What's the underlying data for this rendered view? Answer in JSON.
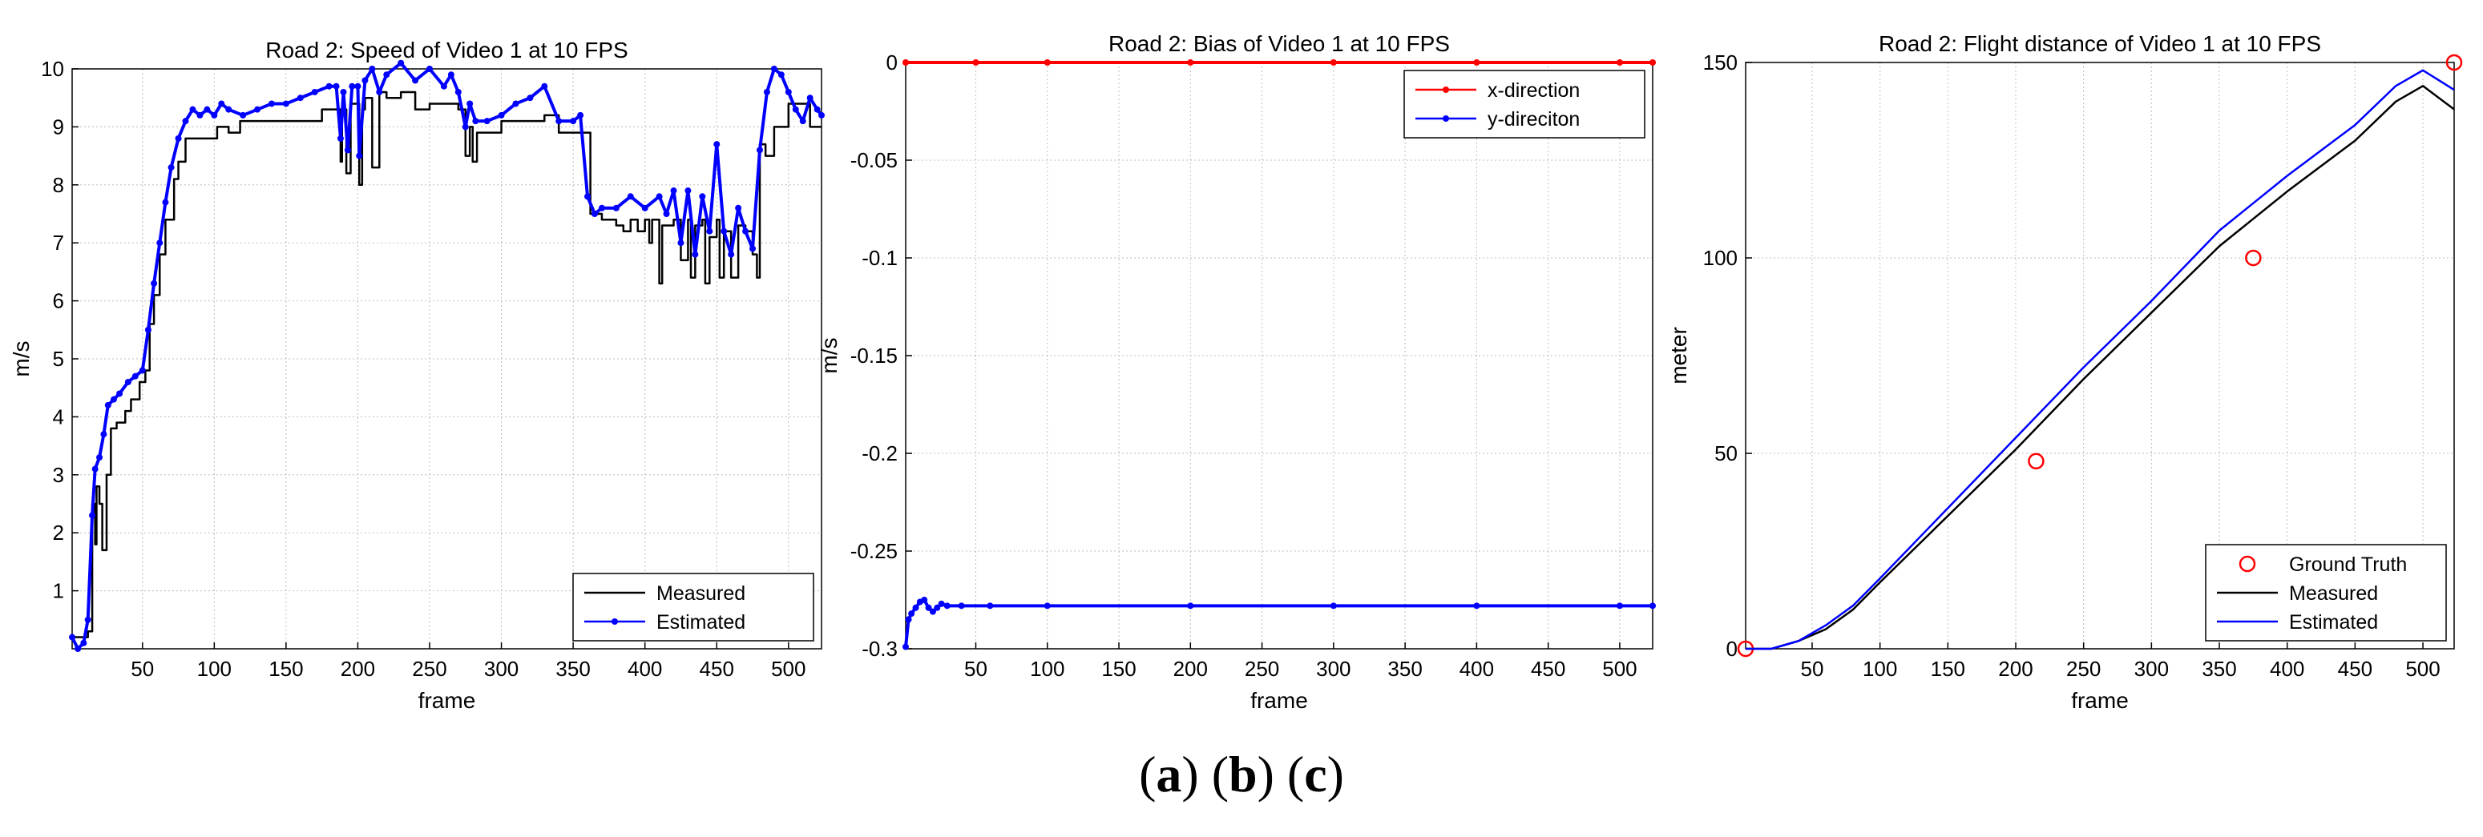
{
  "caption": {
    "a_label": "a",
    "b_label": "b",
    "c_label": "c"
  },
  "chart_data": [
    {
      "type": "line",
      "title": "Road 2: Speed of Video 1 at 10 FPS",
      "xlabel": "frame",
      "ylabel": "m/s",
      "xlim": [
        1,
        523
      ],
      "ylim": [
        0,
        10
      ],
      "xticks": [
        50,
        100,
        150,
        200,
        250,
        300,
        350,
        400,
        450,
        500
      ],
      "yticks": [
        1,
        2,
        3,
        4,
        5,
        6,
        7,
        8,
        9,
        10
      ],
      "legend": "bottom-right",
      "series": [
        {
          "name": "Measured",
          "color": "#000000",
          "marker": "none",
          "x": [
            1,
            5,
            9,
            12,
            15,
            17,
            18,
            20,
            22,
            25,
            28,
            32,
            38,
            42,
            48,
            52,
            55,
            58,
            62,
            66,
            72,
            75,
            80,
            85,
            90,
            100,
            102,
            110,
            115,
            118,
            130,
            140,
            160,
            175,
            185,
            188,
            189,
            192,
            195,
            200,
            201,
            203,
            205,
            210,
            215,
            220,
            230,
            240,
            250,
            260,
            270,
            275,
            278,
            280,
            283,
            290,
            300,
            310,
            320,
            330,
            340,
            350,
            358,
            362,
            370,
            380,
            385,
            390,
            395,
            400,
            403,
            405,
            410,
            412,
            415,
            420,
            425,
            430,
            432,
            435,
            440,
            442,
            445,
            450,
            452,
            455,
            460,
            465,
            470,
            475,
            478,
            480,
            484,
            490,
            500,
            510,
            515,
            520,
            523
          ],
          "y": [
            0.2,
            0.2,
            0.2,
            0.3,
            2.5,
            1.8,
            2.8,
            2.5,
            1.7,
            3.0,
            3.8,
            3.9,
            4.1,
            4.3,
            4.6,
            4.8,
            5.6,
            6.1,
            6.8,
            7.4,
            8.1,
            8.4,
            8.8,
            8.8,
            8.8,
            8.8,
            9.0,
            8.9,
            8.9,
            9.1,
            9.1,
            9.1,
            9.1,
            9.3,
            9.3,
            8.4,
            9.3,
            8.2,
            9.4,
            9.4,
            8.0,
            9.3,
            9.5,
            8.3,
            9.6,
            9.5,
            9.6,
            9.3,
            9.4,
            9.4,
            9.3,
            8.5,
            9.0,
            8.4,
            8.9,
            8.9,
            9.1,
            9.1,
            9.1,
            9.2,
            8.9,
            8.9,
            8.9,
            7.5,
            7.4,
            7.3,
            7.2,
            7.4,
            7.2,
            7.4,
            7.0,
            7.4,
            6.3,
            7.3,
            7.3,
            7.4,
            6.7,
            7.4,
            6.4,
            7.3,
            7.4,
            6.3,
            7.1,
            7.4,
            6.4,
            7.2,
            6.4,
            7.3,
            7.2,
            6.8,
            6.4,
            8.7,
            8.5,
            9.0,
            9.4,
            9.4,
            9.0,
            9.0,
            9.0
          ]
        },
        {
          "name": "Estimated",
          "color": "#0000ff",
          "marker": "dot",
          "x": [
            1,
            5,
            9,
            12,
            15,
            17,
            20,
            23,
            26,
            30,
            34,
            40,
            45,
            50,
            54,
            58,
            62,
            66,
            70,
            75,
            80,
            85,
            90,
            95,
            100,
            105,
            110,
            120,
            130,
            140,
            150,
            160,
            170,
            180,
            185,
            188,
            190,
            193,
            196,
            200,
            201,
            205,
            210,
            215,
            220,
            230,
            240,
            250,
            260,
            265,
            270,
            275,
            278,
            282,
            290,
            300,
            310,
            320,
            330,
            340,
            350,
            355,
            360,
            365,
            370,
            380,
            390,
            400,
            410,
            415,
            420,
            425,
            430,
            435,
            440,
            445,
            450,
            455,
            460,
            465,
            470,
            475,
            480,
            485,
            490,
            495,
            500,
            505,
            510,
            515,
            520,
            523
          ],
          "y": [
            0.2,
            0.0,
            0.1,
            0.5,
            2.3,
            3.1,
            3.3,
            3.7,
            4.2,
            4.3,
            4.4,
            4.6,
            4.7,
            4.8,
            5.5,
            6.3,
            7.0,
            7.7,
            8.3,
            8.8,
            9.1,
            9.3,
            9.2,
            9.3,
            9.2,
            9.4,
            9.3,
            9.2,
            9.3,
            9.4,
            9.4,
            9.5,
            9.6,
            9.7,
            9.7,
            8.8,
            9.6,
            8.6,
            9.7,
            9.7,
            8.5,
            9.8,
            10.0,
            9.6,
            9.9,
            10.1,
            9.8,
            10.0,
            9.7,
            9.9,
            9.6,
            9.0,
            9.4,
            9.1,
            9.1,
            9.2,
            9.4,
            9.5,
            9.7,
            9.1,
            9.1,
            9.2,
            7.8,
            7.5,
            7.6,
            7.6,
            7.8,
            7.6,
            7.8,
            7.5,
            7.9,
            7.0,
            7.9,
            6.8,
            7.8,
            7.2,
            8.7,
            7.2,
            6.8,
            7.6,
            7.2,
            6.9,
            8.6,
            9.6,
            10.0,
            9.9,
            9.6,
            9.3,
            9.1,
            9.5,
            9.3,
            9.2
          ]
        }
      ]
    },
    {
      "type": "line",
      "title": "Road 2: Bias of Video 1 at 10 FPS",
      "xlabel": "frame",
      "ylabel": "m/s",
      "xlim": [
        1,
        523
      ],
      "ylim": [
        -0.3,
        0
      ],
      "xticks": [
        50,
        100,
        150,
        200,
        250,
        300,
        350,
        400,
        450,
        500
      ],
      "yticks": [
        0,
        -0.05,
        -0.1,
        -0.15,
        -0.2,
        -0.25,
        -0.3
      ],
      "legend": "top-right",
      "series": [
        {
          "name": "x-direction",
          "color": "#ff0000",
          "marker": "dot",
          "x": [
            1,
            50,
            100,
            200,
            300,
            400,
            500,
            523
          ],
          "y": [
            0,
            0,
            0,
            0,
            0,
            0,
            0,
            0
          ]
        },
        {
          "name": "y-direciton",
          "color": "#0000ff",
          "marker": "dot",
          "x": [
            1,
            3,
            5,
            8,
            11,
            14,
            17,
            20,
            23,
            26,
            30,
            40,
            60,
            100,
            200,
            300,
            400,
            500,
            523
          ],
          "y": [
            -0.299,
            -0.285,
            -0.282,
            -0.279,
            -0.276,
            -0.275,
            -0.279,
            -0.281,
            -0.279,
            -0.277,
            -0.278,
            -0.278,
            -0.278,
            -0.278,
            -0.278,
            -0.278,
            -0.278,
            -0.278,
            -0.278
          ]
        }
      ]
    },
    {
      "type": "line",
      "title": "Road 2: Flight distance of Video 1 at 10 FPS",
      "xlabel": "frame",
      "ylabel": "meter",
      "xlim": [
        1,
        523
      ],
      "ylim": [
        0,
        150
      ],
      "xticks": [
        50,
        100,
        150,
        200,
        250,
        300,
        350,
        400,
        450,
        500
      ],
      "yticks": [
        0,
        50,
        100,
        150
      ],
      "legend": "bottom-right",
      "series": [
        {
          "name": "Ground Truth",
          "color": "#ff0000",
          "marker": "circle",
          "line": "none",
          "x": [
            1,
            215,
            375,
            523
          ],
          "y": [
            0,
            48,
            100,
            150
          ]
        },
        {
          "name": "Measured",
          "color": "#000000",
          "marker": "none",
          "x": [
            1,
            20,
            40,
            60,
            80,
            100,
            150,
            200,
            250,
            300,
            350,
            375,
            400,
            450,
            480,
            500,
            523
          ],
          "y": [
            0,
            0,
            2,
            5,
            10,
            17,
            34,
            51,
            69,
            86,
            103,
            110,
            117,
            130,
            140,
            144,
            138
          ]
        },
        {
          "name": "Estimated",
          "color": "#0000ff",
          "marker": "none",
          "x": [
            1,
            20,
            40,
            60,
            80,
            100,
            150,
            200,
            250,
            300,
            350,
            375,
            400,
            450,
            480,
            500,
            523
          ],
          "y": [
            0,
            0,
            2,
            6,
            11,
            18,
            36,
            54,
            72,
            89,
            107,
            114,
            121,
            134,
            144,
            148,
            143
          ]
        }
      ]
    }
  ]
}
